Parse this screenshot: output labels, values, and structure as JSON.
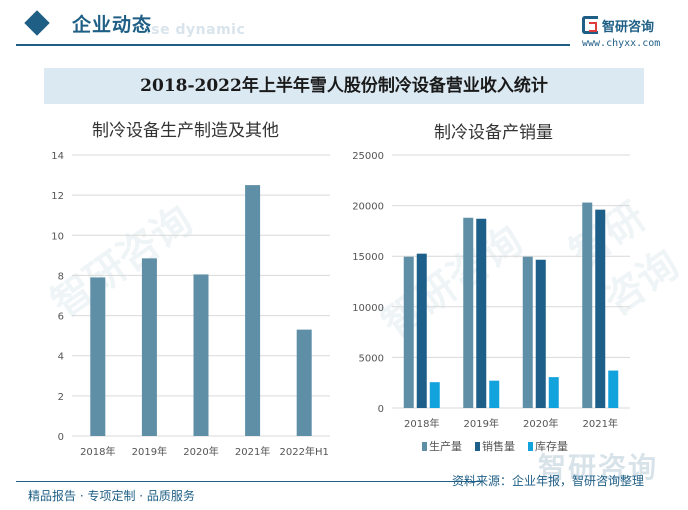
{
  "header": {
    "section_title": "企业动态",
    "section_subtitle": "ise dynamic",
    "logo_name": "智研咨询",
    "logo_url": "www.chyxx.com"
  },
  "banner": {
    "title": "2018-2022年上半年雪人股份制冷设备营业收入统计"
  },
  "colors": {
    "bar_left": "#5f8fa7",
    "production": "#5f8fa7",
    "sales": "#1d5f88",
    "inventory": "#12a3dd",
    "accent": "#1f5f86"
  },
  "watermark_text": "智研咨询",
  "footer": {
    "left": "精品报告 · 专项定制 · 品质服务",
    "right": "资料来源：企业年报，智研咨询整理",
    "brand": "智研咨询"
  },
  "chart_data": [
    {
      "type": "bar",
      "title": "制冷设备生产制造及其他",
      "categories": [
        "2018年",
        "2019年",
        "2020年",
        "2021年",
        "2022年H1"
      ],
      "series": [
        {
          "values": [
            7.9,
            8.85,
            8.05,
            12.5,
            5.3
          ]
        }
      ],
      "xlabel": "",
      "ylabel": "",
      "ylim": [
        0,
        14
      ],
      "yticks": [
        0,
        2,
        4,
        6,
        8,
        10,
        12,
        14
      ],
      "grid": true
    },
    {
      "type": "bar",
      "title": "制冷设备产销量",
      "categories": [
        "2018年",
        "2019年",
        "2020年",
        "2021年"
      ],
      "series": [
        {
          "name": "生产量",
          "values": [
            14950,
            18800,
            14950,
            20300
          ]
        },
        {
          "name": "销售量",
          "values": [
            15250,
            18700,
            14650,
            19600
          ]
        },
        {
          "name": "库存量",
          "values": [
            2550,
            2700,
            3050,
            3700
          ]
        }
      ],
      "xlabel": "",
      "ylabel": "",
      "ylim": [
        0,
        25000
      ],
      "yticks": [
        0,
        5000,
        10000,
        15000,
        20000,
        25000
      ],
      "grid": true,
      "legend": "bottom"
    }
  ]
}
